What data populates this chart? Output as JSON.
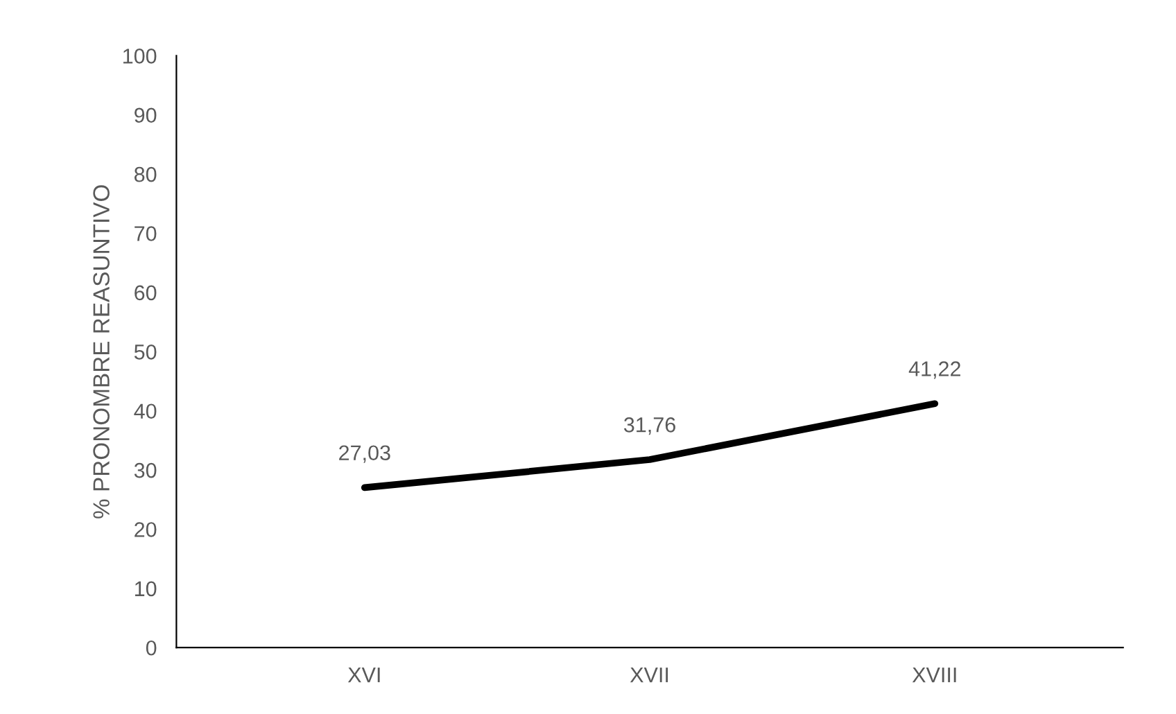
{
  "chart_data": {
    "type": "line",
    "ylabel": "% PRONOMBRE REASUNTIVO",
    "categories": [
      "XVI",
      "XVII",
      "XVIII"
    ],
    "series": [
      {
        "color": "#000000",
        "values": [
          27.03,
          31.76,
          41.22
        ],
        "value_labels": [
          "27,03",
          "31,76",
          "41,22"
        ]
      }
    ],
    "ylim": [
      0,
      100
    ],
    "yticks": [
      0,
      10,
      20,
      30,
      40,
      50,
      60,
      70,
      80,
      90,
      100
    ],
    "grid": false,
    "marker": "none",
    "line_style": "solid"
  }
}
